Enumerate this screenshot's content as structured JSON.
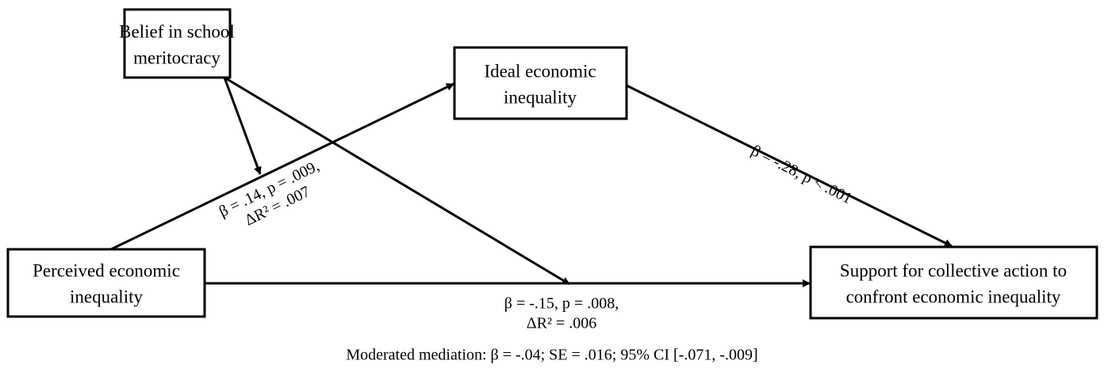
{
  "nodes": [
    {
      "lines": [
        "Belief in school",
        "meritocracy"
      ]
    },
    {
      "lines": [
        "Ideal economic",
        "inequality"
      ]
    },
    {
      "lines": [
        "Perceived economic",
        "inequality"
      ]
    },
    {
      "lines": [
        "Support for collective action to",
        "confront economic inequality"
      ]
    }
  ],
  "edges": [
    {
      "lines": [
        "β = .14, p = .009,",
        "ΔR² = .007"
      ]
    },
    {
      "lines": [
        "β = -.28, p < .001"
      ]
    },
    {
      "lines": [
        "β = -.15, p = .008,",
        "ΔR² = .006"
      ]
    }
  ],
  "footnote": "Moderated mediation: β = -.04; SE = .016; 95% CI [-.071, -.009]"
}
